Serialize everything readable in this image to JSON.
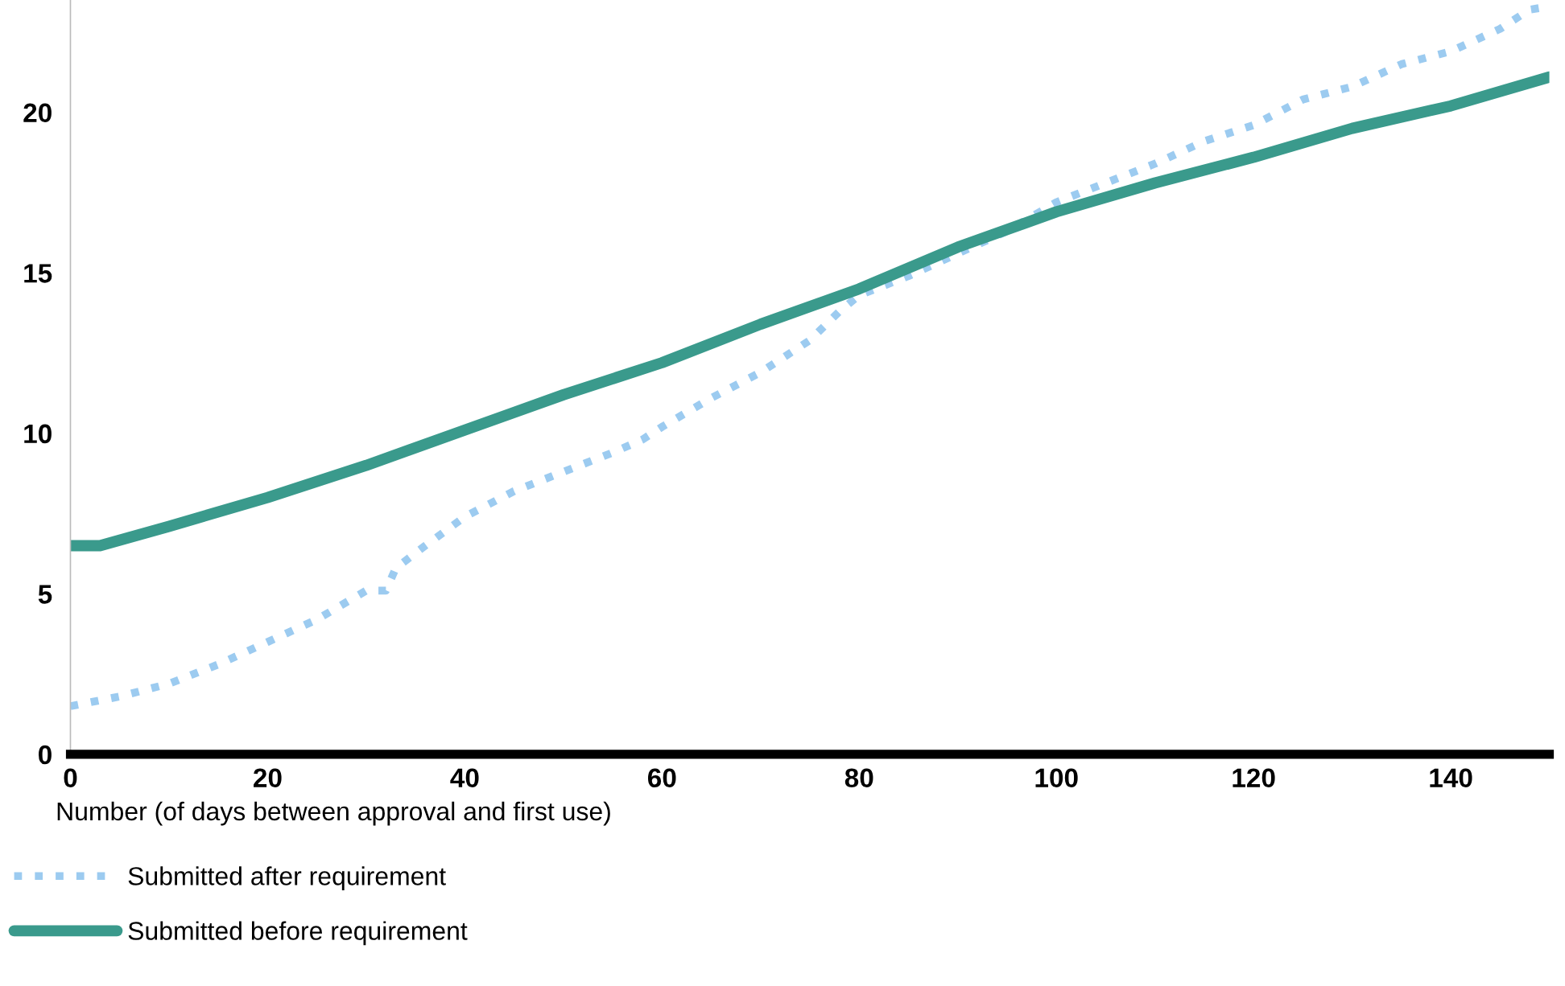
{
  "chart_data": {
    "type": "line",
    "xlabel": "Number (of days between approval and first use)",
    "xlim": [
      0,
      150
    ],
    "ylim": [
      0,
      23.5
    ],
    "xticks": [
      0,
      20,
      40,
      60,
      80,
      100,
      120,
      140
    ],
    "yticks": [
      0,
      5,
      10,
      15,
      20
    ],
    "grid": false,
    "legend": "bottom",
    "marker": "none",
    "series": [
      {
        "name": "Submitted after requirement",
        "color": "#9ccbf0",
        "line_style": "dotted",
        "x": [
          0,
          5,
          10,
          15,
          20,
          25,
          30,
          32,
          33,
          36,
          40,
          45,
          50,
          55,
          58,
          60,
          65,
          70,
          75,
          78,
          80,
          85,
          90,
          95,
          100,
          105,
          110,
          115,
          120,
          125,
          130,
          135,
          140,
          145,
          148,
          150
        ],
        "values": [
          1.5,
          1.8,
          2.2,
          2.8,
          3.5,
          4.2,
          5.1,
          5.1,
          5.8,
          6.5,
          7.4,
          8.2,
          8.8,
          9.4,
          9.8,
          10.2,
          11.1,
          11.9,
          12.9,
          13.8,
          14.3,
          14.9,
          15.6,
          16.3,
          17.2,
          17.8,
          18.4,
          19.1,
          19.6,
          20.4,
          20.8,
          21.5,
          21.9,
          22.6,
          23.2,
          23.3
        ]
      },
      {
        "name": "Submitted before requirement",
        "color": "#3a9a8c",
        "line_style": "solid",
        "x": [
          0,
          3,
          10,
          20,
          30,
          40,
          50,
          60,
          70,
          80,
          90,
          100,
          110,
          120,
          130,
          140,
          150
        ],
        "values": [
          6.5,
          6.5,
          7.1,
          8.0,
          9.0,
          10.1,
          11.2,
          12.2,
          13.4,
          14.5,
          15.8,
          16.9,
          17.8,
          18.6,
          19.5,
          20.2,
          21.1
        ]
      }
    ]
  }
}
